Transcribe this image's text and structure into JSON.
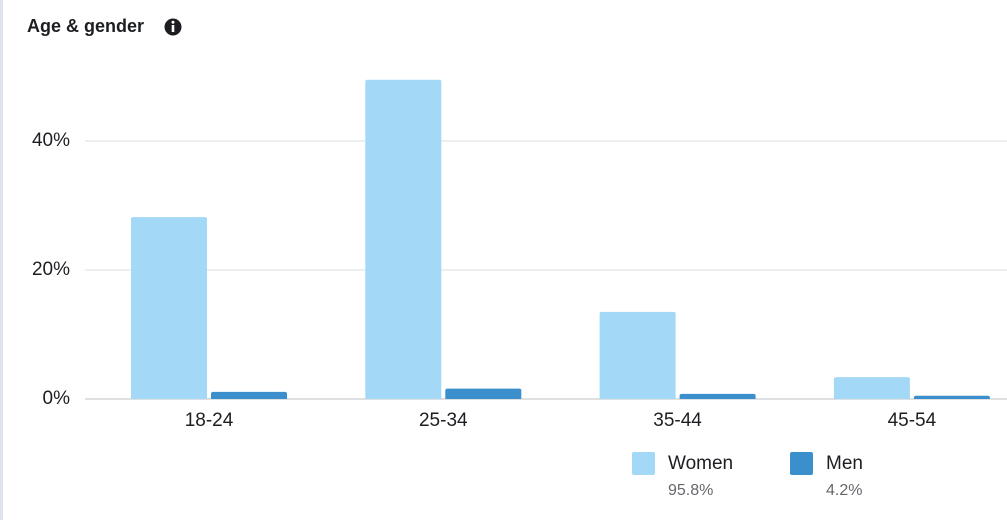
{
  "chart_data": {
    "type": "bar",
    "title": "Age & gender",
    "categories": [
      "18-24",
      "25-34",
      "35-44",
      "45-54"
    ],
    "series": [
      {
        "name": "Women",
        "color": "#a3d9f7",
        "values": [
          28.2,
          49.5,
          13.5,
          3.4
        ],
        "total": {
          "value": 95.8,
          "label": "95.8%"
        }
      },
      {
        "name": "Men",
        "color": "#3b8fcc",
        "values": [
          1.1,
          1.6,
          0.8,
          0.5
        ],
        "total": {
          "value": 4.2,
          "label": "4.2%"
        }
      }
    ],
    "ylim": [
      0,
      50
    ],
    "yticks": [
      {
        "value": 0,
        "label": "0%"
      },
      {
        "value": 20,
        "label": "20%"
      },
      {
        "value": 40,
        "label": "40%"
      }
    ],
    "grid": true
  }
}
